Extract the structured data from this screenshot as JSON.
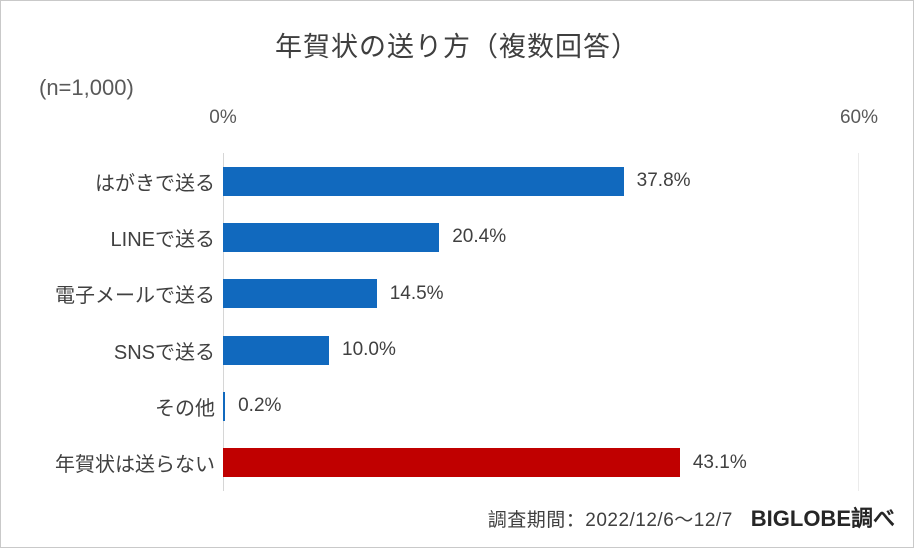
{
  "page": {
    "background": "#ffffff",
    "border_color": "#c9c9c9"
  },
  "chart_data": {
    "type": "bar",
    "orientation": "horizontal",
    "title": "年賀状の送り方（複数回答）",
    "sample_label": "(n=1,000)",
    "xlim": [
      0,
      60
    ],
    "x_ticks": [
      {
        "label": "0%",
        "value": 0
      },
      {
        "label": "60%",
        "value": 60
      }
    ],
    "grid": "vertical lines at 0% and 60% only, light gray",
    "legend": "none",
    "categories": [
      "はがきで送る",
      "LINEで送る",
      "電子メールで送る",
      "SNSで送る",
      "その他",
      "年賀状は送らない"
    ],
    "values": [
      37.8,
      20.4,
      14.5,
      10.0,
      0.2,
      43.1
    ],
    "value_labels": [
      "37.8%",
      "20.4%",
      "14.5%",
      "10.0%",
      "0.2%",
      "43.1%"
    ],
    "bar_colors": [
      "#1169BE",
      "#1169BE",
      "#1169BE",
      "#1169BE",
      "#1169BE",
      "#C00000"
    ],
    "colors": {
      "primary_bar": "#1169BE",
      "highlight_bar": "#C00000",
      "axis_line": "#d6d6d6",
      "text_dark": "#404040",
      "text_gray": "#595959"
    }
  },
  "footer": {
    "survey_period": "調査期間：2022/12/6～12/7",
    "source": "BIGLOBE調べ"
  }
}
